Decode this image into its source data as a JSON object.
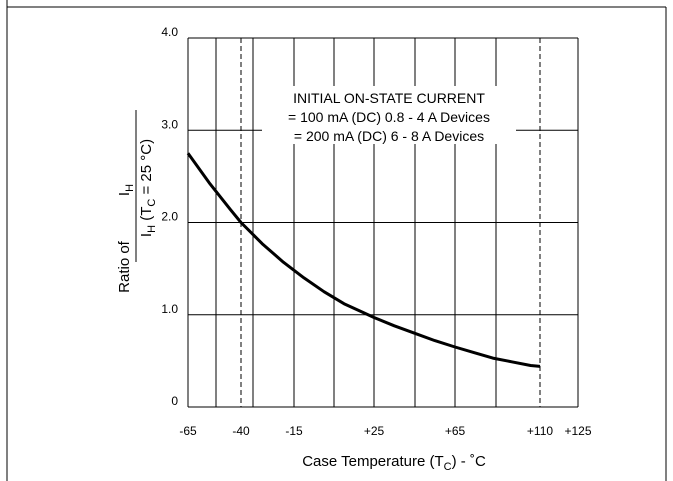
{
  "chart_data": {
    "type": "line",
    "title": "",
    "annotation": [
      "INITIAL ON-STATE CURRENT",
      "= 100 mA (DC) 0.8 - 4 A Devices",
      "= 200 mA (DC) 6 - 8 A Devices"
    ],
    "xlabel": {
      "main": "Case Temperature (T",
      "sub": "C",
      "tail": ") - ˚C"
    },
    "ylabel": {
      "prefix": "Ratio of",
      "num_main": "I",
      "num_sub": "H",
      "den_main": "I",
      "den_sub1": "H",
      "den_mid": " (T",
      "den_sub2": "C",
      "den_tail": " = 25 °C)"
    },
    "xlim": [
      -65,
      125
    ],
    "ylim": [
      0,
      4
    ],
    "x_ticks": [
      {
        "value": -65,
        "label": "-65"
      },
      {
        "value": -40,
        "label": "-40"
      },
      {
        "value": -15,
        "label": "-15"
      },
      {
        "value": 25,
        "label": "+25"
      },
      {
        "value": 65,
        "label": "+65"
      },
      {
        "value": 110,
        "label": "+110"
      },
      {
        "value": 125,
        "label": "+125"
      }
    ],
    "y_ticks": [
      {
        "value": 0,
        "label": "0"
      },
      {
        "value": 1,
        "label": "1.0"
      },
      {
        "value": 2,
        "label": "2.0"
      },
      {
        "value": 3,
        "label": "3.0"
      },
      {
        "value": 4,
        "label": "4.0"
      }
    ],
    "dashed_x": [
      -40,
      110
    ],
    "grid": true,
    "series": [
      {
        "name": "",
        "x": [
          -65,
          -55,
          -45,
          -40,
          -30,
          -20,
          -10,
          0,
          10,
          20,
          25,
          35,
          45,
          55,
          65,
          75,
          85,
          95,
          105,
          110
        ],
        "y": [
          2.75,
          2.43,
          2.14,
          2.0,
          1.77,
          1.57,
          1.4,
          1.25,
          1.12,
          1.02,
          0.97,
          0.88,
          0.8,
          0.72,
          0.65,
          0.59,
          0.53,
          0.49,
          0.45,
          0.44
        ]
      }
    ]
  }
}
